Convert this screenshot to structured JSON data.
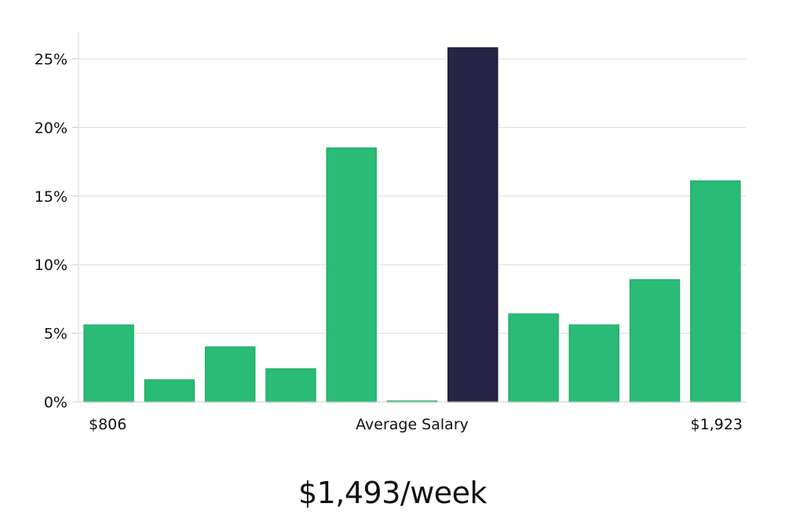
{
  "chart_data": {
    "type": "bar",
    "categories": [
      "1",
      "2",
      "3",
      "4",
      "5",
      "6",
      "7",
      "8",
      "9",
      "10",
      "11"
    ],
    "values": [
      5.6,
      1.6,
      4.0,
      2.4,
      18.5,
      0.05,
      25.8,
      6.4,
      5.6,
      8.9,
      16.1
    ],
    "highlight_index": 6,
    "bar_color": "#2abb76",
    "highlight_color": "#272545",
    "ylim": [
      0,
      27
    ],
    "y_ticks": [
      0,
      5,
      10,
      15,
      20,
      25
    ],
    "y_tick_labels": [
      "0%",
      "5%",
      "10%",
      "15%",
      "20%",
      "25%"
    ],
    "x_labels": {
      "left": "$806",
      "center": "Average Salary",
      "right": "$1,923"
    },
    "grid": true
  },
  "caption": "$1,493/week"
}
